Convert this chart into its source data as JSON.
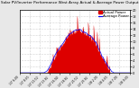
{
  "title": "Solar PV/Inverter Performance West Array Actual & Average Power Output",
  "title_fontsize": 3.0,
  "title_color": "#000000",
  "background_color": "#e8e8e8",
  "plot_bg_color": "#ffffff",
  "bar_color": "#dd0000",
  "avg_line_color": "#0000ff",
  "legend_actual": "Actual Power",
  "legend_avg": "Average Power",
  "legend_fontsize": 2.8,
  "x_tick_fontsize": 2.2,
  "y_tick_fontsize": 2.5,
  "ymax": 20.0,
  "ymin": 0.0,
  "y_ticks": [
    0,
    2,
    4,
    6,
    8,
    10,
    12,
    14,
    16,
    18,
    20
  ],
  "grid_color": "#aaaaaa",
  "num_points": 200,
  "seed": 7
}
